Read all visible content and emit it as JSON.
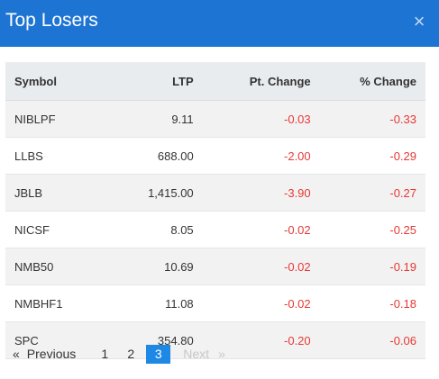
{
  "header": {
    "title": "Top Losers",
    "close_icon": "×"
  },
  "table": {
    "columns": [
      "Symbol",
      "LTP",
      "Pt. Change",
      "% Change"
    ],
    "rows": [
      {
        "symbol": "NIBLPF",
        "ltp": "9.11",
        "pt_change": "-0.03",
        "pct_change": "-0.33"
      },
      {
        "symbol": "LLBS",
        "ltp": "688.00",
        "pt_change": "-2.00",
        "pct_change": "-0.29"
      },
      {
        "symbol": "JBLB",
        "ltp": "1,415.00",
        "pt_change": "-3.90",
        "pct_change": "-0.27"
      },
      {
        "symbol": "NICSF",
        "ltp": "8.05",
        "pt_change": "-0.02",
        "pct_change": "-0.25"
      },
      {
        "symbol": "NMB50",
        "ltp": "10.69",
        "pt_change": "-0.02",
        "pct_change": "-0.19"
      },
      {
        "symbol": "NMBHF1",
        "ltp": "11.08",
        "pt_change": "-0.02",
        "pct_change": "-0.18"
      },
      {
        "symbol": "SPC",
        "ltp": "354.80",
        "pt_change": "-0.20",
        "pct_change": "-0.06"
      }
    ]
  },
  "pagination": {
    "prev_arrow": "«",
    "prev_label": "Previous",
    "pages": [
      "1",
      "2",
      "3"
    ],
    "active_page": "3",
    "next_label": "Next",
    "next_arrow": "»"
  },
  "colors": {
    "header_bg": "#1e74d2",
    "negative": "#e53935",
    "active_page_bg": "#1e88e5"
  }
}
